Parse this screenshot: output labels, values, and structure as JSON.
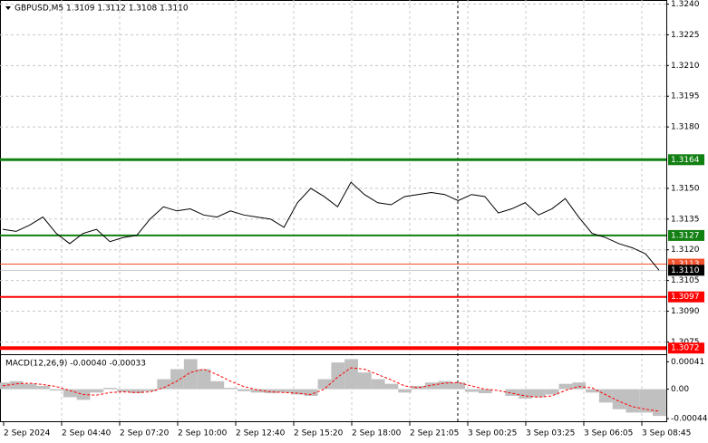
{
  "chart_data": [
    {
      "type": "line",
      "title": "GBPUSD,M5  1.3109 1.3112 1.3108 1.3110",
      "color": "#000000",
      "values": [
        1.313,
        1.3129,
        1.3132,
        1.3136,
        1.3128,
        1.3123,
        1.3128,
        1.313,
        1.3124,
        1.3126,
        1.3127,
        1.3135,
        1.3141,
        1.3139,
        1.314,
        1.3137,
        1.3136,
        1.3139,
        1.3137,
        1.3136,
        1.3135,
        1.3131,
        1.3143,
        1.315,
        1.3146,
        1.3141,
        1.3153,
        1.3147,
        1.3143,
        1.3142,
        1.3146,
        1.3147,
        1.3148,
        1.3147,
        1.3144,
        1.3147,
        1.3146,
        1.3138,
        1.314,
        1.3143,
        1.3137,
        1.314,
        1.3145,
        1.3136,
        1.3128,
        1.3126,
        1.3123,
        1.3121,
        1.3118,
        1.311
      ],
      "ylim": [
        1.3069,
        1.3242
      ],
      "yticks": [
        {
          "value": 1.324,
          "label": "1.3240"
        },
        1.3225,
        {
          "value": 1.321,
          "label": "1.3210"
        },
        1.3195,
        {
          "value": 1.318,
          "label": "1.3180"
        },
        {
          "value": 1.315,
          "label": "1.3150"
        },
        1.3135,
        {
          "value": 1.312,
          "label": "1.3120"
        },
        1.3105,
        {
          "value": 1.309,
          "label": "1.3090"
        },
        1.3075
      ],
      "grid": true,
      "xtick_labels": [
        "2 Sep 2024",
        "2 Sep 04:40",
        "2 Sep 07:20",
        "2 Sep 10:00",
        "2 Sep 12:40",
        "2 Sep 15:20",
        "2 Sep 18:00",
        "2 Sep 21:05",
        "3 Sep 00:25",
        "3 Sep 03:25",
        "3 Sep 06:05",
        "3 Sep 08:45"
      ],
      "levels": {
        "values": [
          1.3164,
          1.3127,
          1.3113,
          1.311,
          1.3097,
          1.3072
        ],
        "value_labels": [
          "1.3164",
          "1.3127",
          "1.3113",
          "1.3110",
          "1.3097",
          "1.3072"
        ],
        "colors": [
          "#138013",
          "#138013",
          "#f0502a",
          "#000000",
          "#ff0000",
          "#ff0000"
        ]
      }
    },
    {
      "type": "macd",
      "title": "MACD(12,26,9) -0.00040 -0.00033",
      "histogram": {
        "color": "#c0c0c0",
        "values": [
          0.0001,
          0.00012,
          8e-05,
          5e-05,
          -2e-05,
          -0.00012,
          -0.00016,
          -5e-05,
          2e-05,
          -4e-05,
          -6e-05,
          -3e-05,
          0.00015,
          0.0003,
          0.00045,
          0.0003,
          0.00012,
          2e-05,
          -3e-05,
          -5e-05,
          -6e-05,
          -5e-05,
          -8e-05,
          -0.0001,
          0.00015,
          0.0004,
          0.00045,
          0.00025,
          0.00015,
          8e-05,
          -5e-05,
          5e-05,
          0.0001,
          0.00012,
          0.0001,
          -4e-05,
          -6e-05,
          0,
          -0.0001,
          -0.00014,
          -0.00012,
          -8e-05,
          8e-05,
          0.0001,
          -5e-05,
          -0.0002,
          -0.0003,
          -0.00035,
          -0.00035,
          -0.0004
        ]
      },
      "signal": {
        "color": "#ff0000",
        "values": [
          5e-05,
          8e-05,
          9e-05,
          7e-05,
          4e-05,
          -2e-05,
          -8e-05,
          -9e-05,
          -5e-05,
          -4e-05,
          -5e-05,
          -4e-05,
          2e-05,
          0.00012,
          0.00025,
          0.0003,
          0.00022,
          0.00012,
          4e-05,
          -1e-05,
          -4e-05,
          -5e-05,
          -6e-05,
          -8e-05,
          0,
          0.00018,
          0.00032,
          0.0003,
          0.00022,
          0.00014,
          5e-05,
          2e-05,
          6e-05,
          9e-05,
          0.0001,
          5e-05,
          0,
          -2e-05,
          -6e-05,
          -0.0001,
          -0.00012,
          -0.0001,
          -2e-05,
          4e-05,
          2e-05,
          -8e-05,
          -0.00018,
          -0.00026,
          -0.0003,
          -0.00033
        ]
      },
      "ylim": [
        -0.00048,
        0.00051
      ],
      "yticks": [
        0.00041,
        {
          "value": 0,
          "label": "0.00"
        },
        -0.00044
      ]
    }
  ]
}
